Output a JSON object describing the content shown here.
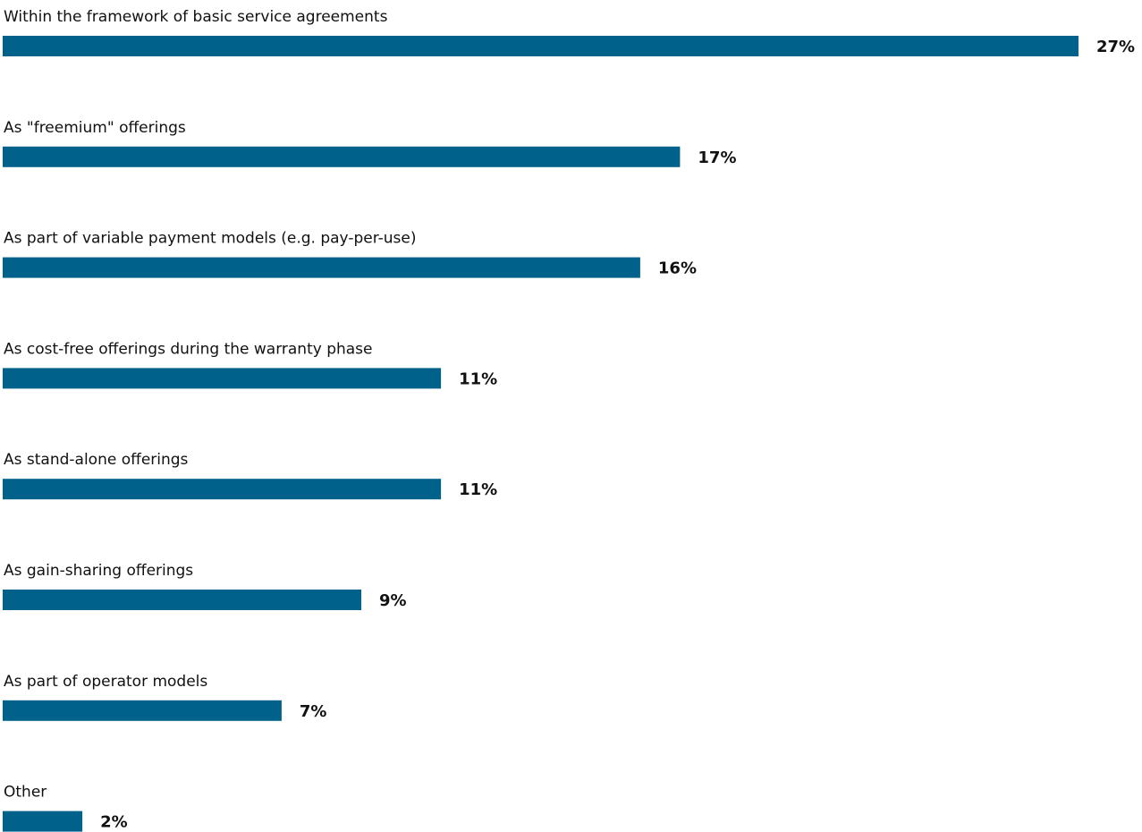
{
  "chart_data": {
    "type": "bar",
    "orientation": "horizontal",
    "title": "",
    "xlabel": "",
    "ylabel": "",
    "categories": [
      "Within the framework of basic service agreements",
      "As \"freemium\" offerings",
      "As part of variable payment models (e.g. pay-per-use)",
      "As cost-free offerings during the warranty phase",
      "As stand-alone offerings",
      "As gain-sharing offerings",
      "As part of operator models",
      "Other"
    ],
    "values": [
      27,
      17,
      16,
      11,
      11,
      9,
      7,
      2
    ],
    "value_labels": [
      "27%",
      "17%",
      "16%",
      "11%",
      "11%",
      "9%",
      "7%",
      "2%"
    ],
    "unit": "%",
    "xlim": [
      0,
      27
    ],
    "grid": false,
    "legend": "none",
    "bar_color": "#00628b",
    "text_color": "#111111"
  }
}
